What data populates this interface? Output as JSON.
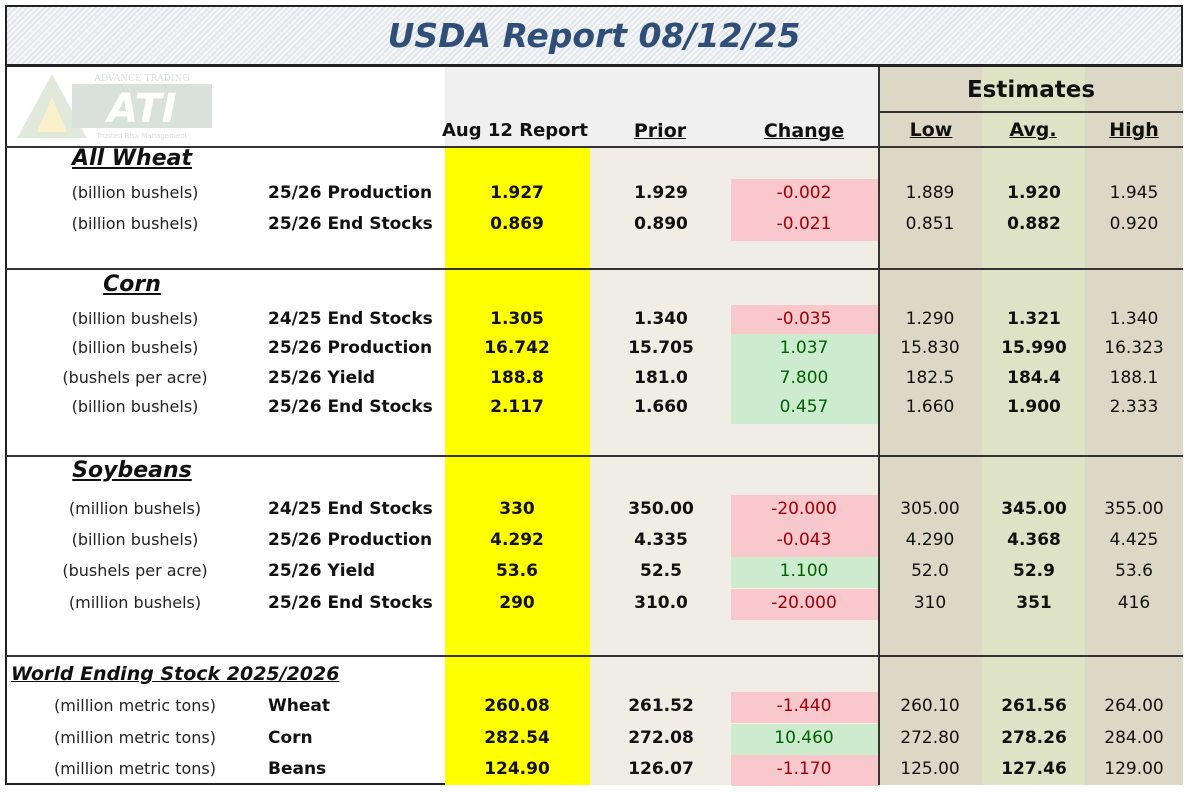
{
  "title": "USDA Report 08/12/25",
  "logo": {
    "top_text": "ADVANCE TRADING",
    "letters": "ATI",
    "tagline": "Trusted Risk Management"
  },
  "headers": {
    "report": "Aug 12 Report",
    "prior": "Prior",
    "change": "Change",
    "estimates": "Estimates",
    "low": "Low",
    "avg": "Avg.",
    "high": "High"
  },
  "colors": {
    "title": "#2f4f78",
    "report_column": "#ffff00",
    "negative_bg": "#f8c8cd",
    "negative_text": "#9c0006",
    "positive_bg": "#cdeccf",
    "positive_text": "#006100"
  },
  "sections": [
    {
      "title": "All Wheat",
      "rows": [
        {
          "unit": "(billion bushels)",
          "name": "25/26 Production",
          "report": "1.927",
          "prior": "1.929",
          "change": "-0.002",
          "dir": "neg",
          "low": "1.889",
          "avg": "1.920",
          "high": "1.945"
        },
        {
          "unit": "(billion bushels)",
          "name": "25/26 End Stocks",
          "report": "0.869",
          "prior": "0.890",
          "change": "-0.021",
          "dir": "neg",
          "low": "0.851",
          "avg": "0.882",
          "high": "0.920"
        }
      ]
    },
    {
      "title": "Corn",
      "rows": [
        {
          "unit": "(billion bushels)",
          "name": "24/25 End Stocks",
          "report": "1.305",
          "prior": "1.340",
          "change": "-0.035",
          "dir": "neg",
          "low": "1.290",
          "avg": "1.321",
          "high": "1.340"
        },
        {
          "unit": "(billion bushels)",
          "name": "25/26 Production",
          "report": "16.742",
          "prior": "15.705",
          "change": "1.037",
          "dir": "pos",
          "low": "15.830",
          "avg": "15.990",
          "high": "16.323"
        },
        {
          "unit": "(bushels per acre)",
          "name": "25/26 Yield",
          "report": "188.8",
          "prior": "181.0",
          "change": "7.800",
          "dir": "pos",
          "low": "182.5",
          "avg": "184.4",
          "high": "188.1"
        },
        {
          "unit": "(billion bushels)",
          "name": "25/26 End Stocks",
          "report": "2.117",
          "prior": "1.660",
          "change": "0.457",
          "dir": "pos",
          "low": "1.660",
          "avg": "1.900",
          "high": "2.333"
        }
      ]
    },
    {
      "title": "Soybeans",
      "rows": [
        {
          "unit": "(million bushels)",
          "name": "24/25 End Stocks",
          "report": "330",
          "prior": "350.00",
          "change": "-20.000",
          "dir": "neg",
          "low": "305.00",
          "avg": "345.00",
          "high": "355.00"
        },
        {
          "unit": "(billion bushels)",
          "name": "25/26 Production",
          "report": "4.292",
          "prior": "4.335",
          "change": "-0.043",
          "dir": "neg",
          "low": "4.290",
          "avg": "4.368",
          "high": "4.425"
        },
        {
          "unit": "(bushels per acre)",
          "name": "25/26 Yield",
          "report": "53.6",
          "prior": "52.5",
          "change": "1.100",
          "dir": "pos",
          "low": "52.0",
          "avg": "52.9",
          "high": "53.6"
        },
        {
          "unit": "(million bushels)",
          "name": "25/26 End Stocks",
          "report": "290",
          "prior": "310.0",
          "change": "-20.000",
          "dir": "neg",
          "low": "310",
          "avg": "351",
          "high": "416"
        }
      ]
    },
    {
      "title": "World Ending Stock 2025/2026",
      "rows": [
        {
          "unit": "(million metric tons)",
          "name": "Wheat",
          "report": "260.08",
          "prior": "261.52",
          "change": "-1.440",
          "dir": "neg",
          "low": "260.10",
          "avg": "261.56",
          "high": "264.00"
        },
        {
          "unit": "(million metric tons)",
          "name": "Corn",
          "report": "282.54",
          "prior": "272.08",
          "change": "10.460",
          "dir": "pos",
          "low": "272.80",
          "avg": "278.26",
          "high": "284.00"
        },
        {
          "unit": "(million metric tons)",
          "name": "Beans",
          "report": "124.90",
          "prior": "126.07",
          "change": "-1.170",
          "dir": "neg",
          "low": "125.00",
          "avg": "127.46",
          "high": "129.00"
        }
      ]
    }
  ]
}
